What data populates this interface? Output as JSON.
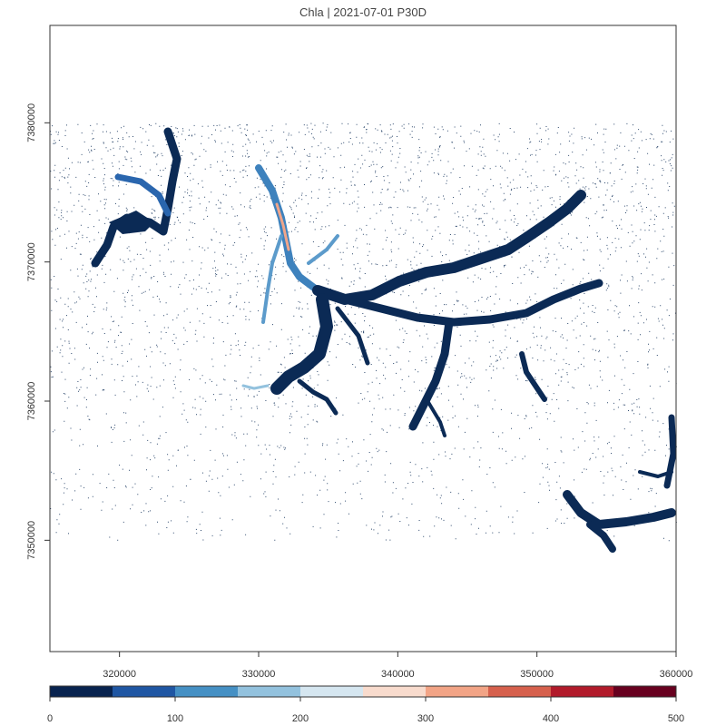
{
  "title": "Chla | 2021-07-01 P30D",
  "map": {
    "x_ticks": [
      "320000",
      "330000",
      "340000",
      "350000",
      "360000"
    ],
    "y_ticks": [
      "7350000",
      "7360000",
      "7370000",
      "7380000"
    ],
    "x_tick_values": [
      320000,
      330000,
      340000,
      350000,
      360000
    ],
    "y_tick_values": [
      7350000,
      7360000,
      7370000,
      7380000
    ],
    "xlim": [
      315000,
      360000
    ],
    "ylim": [
      7342000,
      7387000
    ],
    "data_extent": {
      "x": [
        315000,
        360000
      ],
      "y": [
        7350000,
        7380000
      ]
    },
    "water_color": "#0b2a55",
    "background_color": "#ffffff"
  },
  "legend": {
    "labels": [
      "0",
      "100",
      "200",
      "300",
      "400",
      "500"
    ],
    "breaks": [
      0,
      50,
      100,
      150,
      200,
      250,
      300,
      350,
      400,
      450,
      500
    ],
    "colors": [
      "#08234f",
      "#1f56a3",
      "#4590c4",
      "#93c2de",
      "#d5e6f0",
      "#f8dbcd",
      "#f2a486",
      "#d6604d",
      "#b11a2a",
      "#67001f"
    ]
  }
}
